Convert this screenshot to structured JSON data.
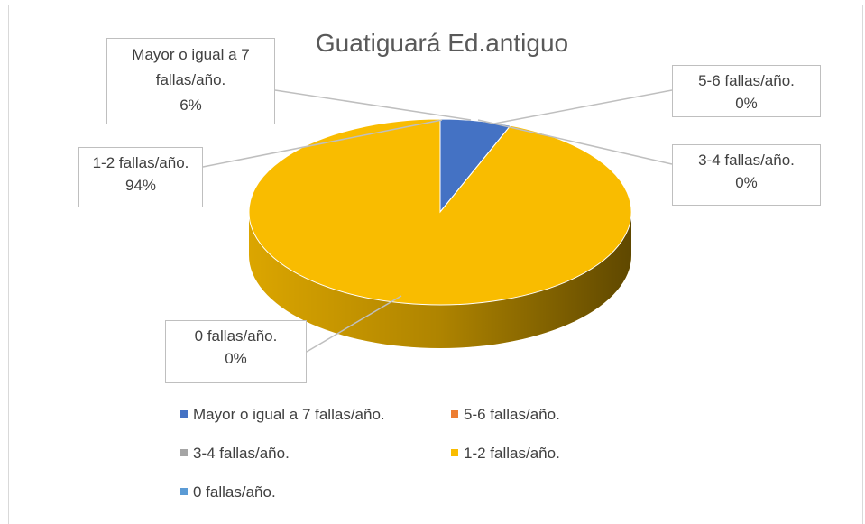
{
  "chart_data": {
    "type": "pie",
    "title": "Guatiguará Ed.antiguo",
    "categories": [
      "Mayor o igual a 7 fallas/año.",
      "5-6 fallas/año.",
      "3-4 fallas/año.",
      "1-2 fallas/año.",
      "0 fallas/año."
    ],
    "values": [
      6,
      0,
      0,
      94,
      0
    ],
    "value_labels": [
      "6%",
      "0%",
      "0%",
      "94%",
      "0%"
    ],
    "colors": [
      "#4472c4",
      "#ed7d31",
      "#a5a5a5",
      "#f9bc00",
      "#5b9bd5"
    ],
    "legend": "bottom",
    "view": "3d"
  }
}
